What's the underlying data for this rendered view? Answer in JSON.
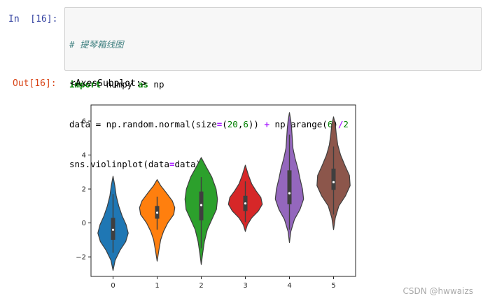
{
  "cell": {
    "in_prompt": "In  [16]:",
    "out_prompt": "Out[16]:",
    "code": {
      "comment": "# 提琴箱线图",
      "line2": {
        "kw1": "import",
        "mod": " numpy ",
        "kw2": "as",
        "alias": " np"
      },
      "line3": {
        "pre": "data = np.random.normal(size",
        "eq": "=",
        "tuple_open": "(",
        "n20": "20",
        "comma": ",",
        "n6": "6",
        "close": ")) ",
        "plus": "+",
        "mid": " np.arange(",
        "n6b": "6",
        "close2": ")",
        "div": "/",
        "n2": "2"
      },
      "line4": {
        "pre": "sns.violinplot(data",
        "eq": "=",
        "post": "data)"
      }
    },
    "output_text": "<AxesSubplot:>"
  },
  "chart_data": {
    "type": "violin",
    "categories": [
      "0",
      "1",
      "2",
      "3",
      "4",
      "5"
    ],
    "y_ticks": [
      "−2",
      "0",
      "2",
      "4",
      "6"
    ],
    "y_tick_values": [
      -2,
      0,
      2,
      4,
      6
    ],
    "ylim": [
      -3.15,
      6.95
    ],
    "series": [
      {
        "color": "#1f77b4",
        "min": -2.8,
        "max": 2.75,
        "q1": -1.0,
        "median": -0.4,
        "q3": 0.3,
        "whisk_lo": -1.75,
        "whisk_hi": 1.7,
        "profile": [
          [
            -2.8,
            0.0
          ],
          [
            -2.2,
            0.06
          ],
          [
            -1.6,
            0.2
          ],
          [
            -1.1,
            0.36
          ],
          [
            -0.6,
            0.43
          ],
          [
            -0.1,
            0.37
          ],
          [
            0.4,
            0.26
          ],
          [
            1.0,
            0.16
          ],
          [
            1.6,
            0.09
          ],
          [
            2.2,
            0.05
          ],
          [
            2.75,
            0.0
          ]
        ]
      },
      {
        "color": "#ff7f0e",
        "min": -2.25,
        "max": 2.55,
        "q1": 0.25,
        "median": 0.6,
        "q3": 1.0,
        "whisk_lo": -0.4,
        "whisk_hi": 1.55,
        "profile": [
          [
            -2.25,
            0.0
          ],
          [
            -1.6,
            0.05
          ],
          [
            -1.0,
            0.1
          ],
          [
            -0.5,
            0.18
          ],
          [
            0.0,
            0.3
          ],
          [
            0.5,
            0.47
          ],
          [
            0.9,
            0.5
          ],
          [
            1.3,
            0.43
          ],
          [
            1.8,
            0.25
          ],
          [
            2.2,
            0.1
          ],
          [
            2.55,
            0.0
          ]
        ]
      },
      {
        "color": "#2ca02c",
        "min": -2.45,
        "max": 3.85,
        "q1": 0.15,
        "median": 1.05,
        "q3": 1.85,
        "whisk_lo": -1.5,
        "whisk_hi": 2.7,
        "profile": [
          [
            -2.45,
            0.0
          ],
          [
            -1.8,
            0.04
          ],
          [
            -1.1,
            0.09
          ],
          [
            -0.4,
            0.17
          ],
          [
            0.2,
            0.3
          ],
          [
            0.8,
            0.43
          ],
          [
            1.4,
            0.46
          ],
          [
            2.0,
            0.42
          ],
          [
            2.7,
            0.3
          ],
          [
            3.3,
            0.14
          ],
          [
            3.85,
            0.0
          ]
        ]
      },
      {
        "color": "#d62728",
        "min": -0.5,
        "max": 3.4,
        "q1": 0.7,
        "median": 1.15,
        "q3": 1.6,
        "whisk_lo": 0.05,
        "whisk_hi": 2.45,
        "profile": [
          [
            -0.5,
            0.0
          ],
          [
            -0.1,
            0.06
          ],
          [
            0.3,
            0.18
          ],
          [
            0.7,
            0.37
          ],
          [
            1.1,
            0.48
          ],
          [
            1.5,
            0.44
          ],
          [
            1.9,
            0.3
          ],
          [
            2.3,
            0.18
          ],
          [
            2.8,
            0.09
          ],
          [
            3.4,
            0.0
          ]
        ]
      },
      {
        "color": "#9467bd",
        "min": -1.15,
        "max": 6.5,
        "q1": 1.1,
        "median": 1.75,
        "q3": 3.1,
        "whisk_lo": -0.4,
        "whisk_hi": 5.2,
        "profile": [
          [
            -1.15,
            0.0
          ],
          [
            -0.5,
            0.04
          ],
          [
            0.2,
            0.14
          ],
          [
            0.8,
            0.3
          ],
          [
            1.4,
            0.4
          ],
          [
            2.0,
            0.37
          ],
          [
            2.6,
            0.3
          ],
          [
            3.2,
            0.24
          ],
          [
            3.8,
            0.16
          ],
          [
            4.4,
            0.1
          ],
          [
            5.0,
            0.08
          ],
          [
            5.6,
            0.06
          ],
          [
            6.0,
            0.04
          ],
          [
            6.5,
            0.0
          ]
        ]
      },
      {
        "color": "#8c564b",
        "min": -0.4,
        "max": 6.25,
        "q1": 1.95,
        "median": 2.4,
        "q3": 3.2,
        "whisk_lo": 0.5,
        "whisk_hi": 4.5,
        "profile": [
          [
            -0.4,
            0.0
          ],
          [
            0.3,
            0.05
          ],
          [
            1.0,
            0.15
          ],
          [
            1.6,
            0.34
          ],
          [
            2.2,
            0.47
          ],
          [
            2.8,
            0.45
          ],
          [
            3.4,
            0.32
          ],
          [
            4.0,
            0.2
          ],
          [
            4.6,
            0.12
          ],
          [
            5.2,
            0.08
          ],
          [
            5.8,
            0.05
          ],
          [
            6.25,
            0.0
          ]
        ]
      }
    ]
  },
  "watermark": "CSDN @hwwaizs"
}
